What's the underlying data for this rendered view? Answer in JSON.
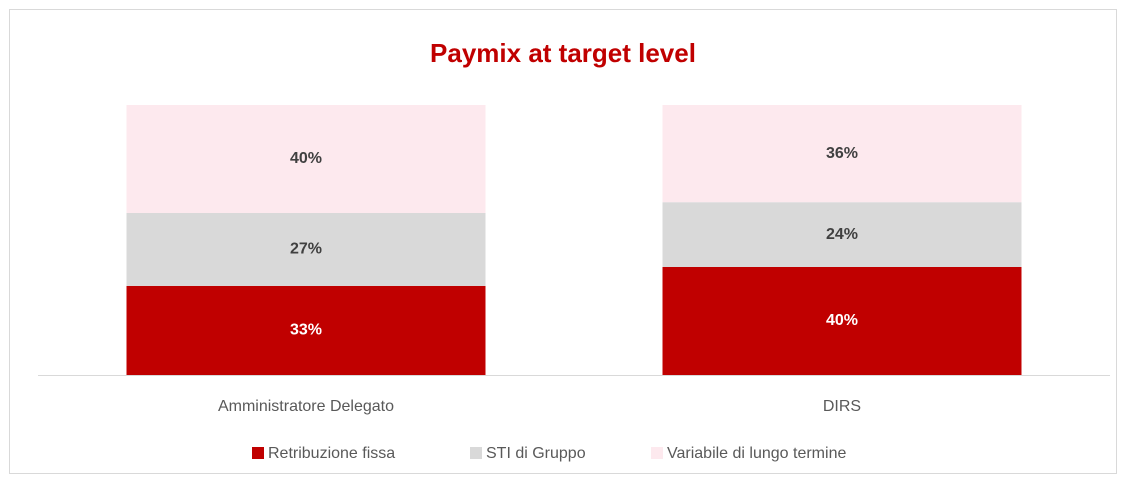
{
  "chart_data": {
    "type": "stacked_bar",
    "title": "Paymix at target level",
    "categories": [
      "Amministratore Delegato",
      "DIRS"
    ],
    "series": [
      {
        "name": "Retribuzione fissa",
        "color": "#c00000",
        "values": [
          33,
          40
        ],
        "value_labels": [
          "33%",
          "40%"
        ]
      },
      {
        "name": "STI di Gruppo",
        "color": "#d9d9d9",
        "values": [
          27,
          24
        ],
        "value_labels": [
          "27%",
          "24%"
        ]
      },
      {
        "name": "Variabile di lungo termine",
        "color": "#fde9ee",
        "values": [
          40,
          36
        ],
        "value_labels": [
          "40%",
          "36%"
        ]
      }
    ],
    "ylim": [
      0,
      100
    ],
    "legend": "bottom"
  }
}
